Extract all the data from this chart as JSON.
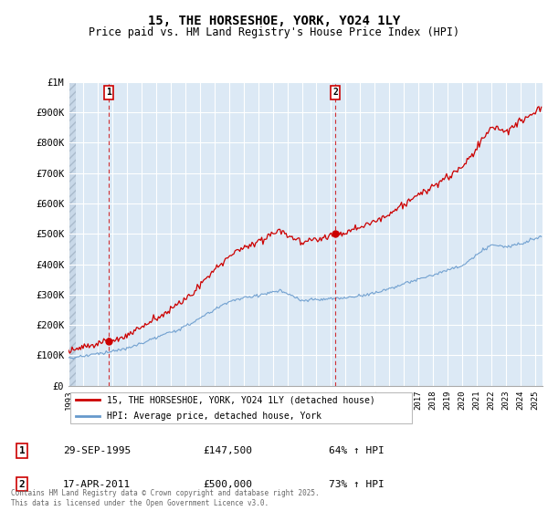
{
  "title": "15, THE HORSESHOE, YORK, YO24 1LY",
  "subtitle": "Price paid vs. HM Land Registry's House Price Index (HPI)",
  "ylabel_ticks": [
    "£0",
    "£100K",
    "£200K",
    "£300K",
    "£400K",
    "£500K",
    "£600K",
    "£700K",
    "£800K",
    "£900K",
    "£1M"
  ],
  "ytick_values": [
    0,
    100000,
    200000,
    300000,
    400000,
    500000,
    600000,
    700000,
    800000,
    900000,
    1000000
  ],
  "ylim": [
    0,
    1000000
  ],
  "xlim_start": 1993.0,
  "xlim_end": 2025.5,
  "sale1_date": 1995.75,
  "sale1_price": 147500,
  "sale2_date": 2011.29,
  "sale2_price": 500000,
  "line_color_price": "#cc0000",
  "line_color_hpi": "#6699cc",
  "chart_bg_color": "#dce9f5",
  "background_color": "#ffffff",
  "grid_color": "#ffffff",
  "hatch_bg_color": "#c8d8e8",
  "legend_label_price": "15, THE HORSESHOE, YORK, YO24 1LY (detached house)",
  "legend_label_hpi": "HPI: Average price, detached house, York",
  "xtick_years": [
    1993,
    1994,
    1995,
    1996,
    1997,
    1998,
    1999,
    2000,
    2001,
    2002,
    2003,
    2004,
    2005,
    2006,
    2007,
    2008,
    2009,
    2010,
    2011,
    2012,
    2013,
    2014,
    2015,
    2016,
    2017,
    2018,
    2019,
    2020,
    2021,
    2022,
    2023,
    2024,
    2025
  ],
  "footer": "Contains HM Land Registry data © Crown copyright and database right 2025.\nThis data is licensed under the Open Government Licence v3.0."
}
